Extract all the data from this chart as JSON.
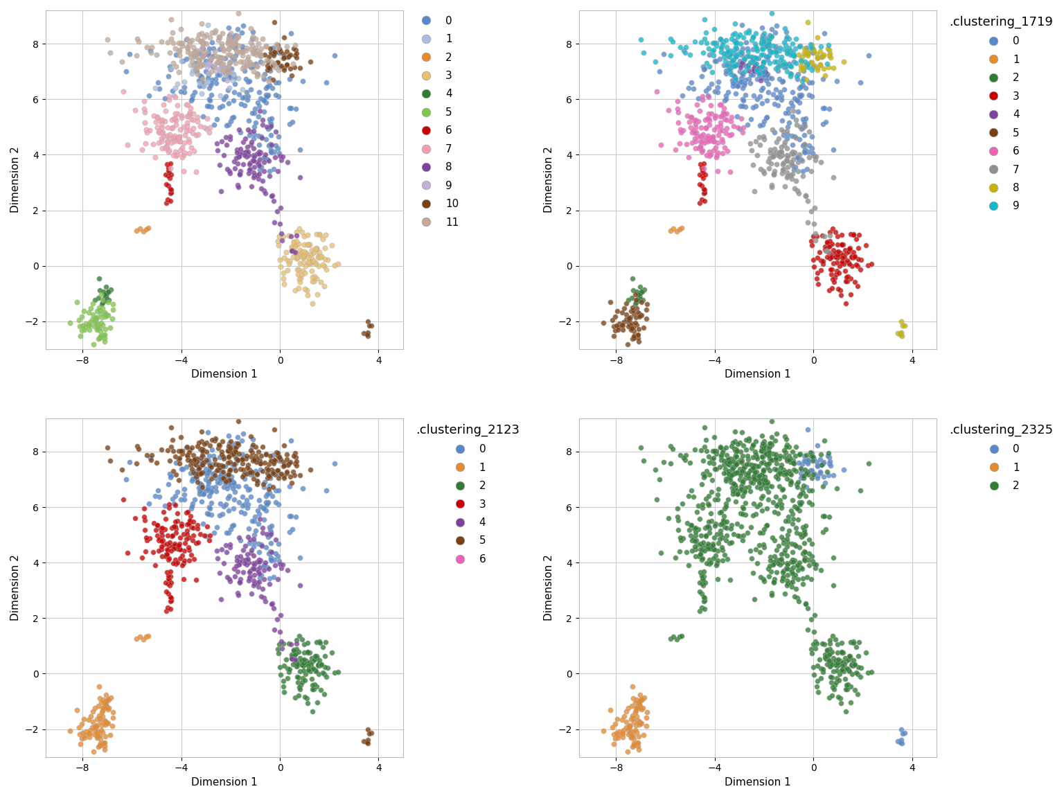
{
  "xlabel": "Dimension 1",
  "ylabel": "Dimension 2",
  "xlim": [
    -9.5,
    5.0
  ],
  "ylim": [
    -3.0,
    9.2
  ],
  "xticks": [
    -8,
    -4,
    0,
    4
  ],
  "yticks": [
    -2,
    0,
    2,
    4,
    6,
    8
  ],
  "point_size": 28,
  "alpha": 0.78,
  "edge_color": "#AAAAAA",
  "edge_width": 0.4,
  "bg_color": "#FFFFFF",
  "grid_color": "#CCCCCC",
  "panels": [
    {
      "legend_title": null,
      "cluster_colors": [
        "#5588CC",
        "#AABEDD",
        "#E8892A",
        "#E8C070",
        "#2E7D32",
        "#7DC844",
        "#CC0000",
        "#F4A0B0",
        "#8040A0",
        "#C0B0DC",
        "#7B3F10",
        "#C4A898"
      ],
      "cluster_labels": [
        "0",
        "1",
        "2",
        "3",
        "4",
        "5",
        "6",
        "7",
        "8",
        "9",
        "10",
        "11"
      ]
    },
    {
      "legend_title": ".clustering_1719",
      "cluster_colors": [
        "#5588CC",
        "#E8892A",
        "#2E7D32",
        "#CC0000",
        "#8040A0",
        "#7B3F10",
        "#F060B8",
        "#909090",
        "#C8B400",
        "#10B8CC"
      ],
      "cluster_labels": [
        "0",
        "1",
        "2",
        "3",
        "4",
        "5",
        "6",
        "7",
        "8",
        "9"
      ]
    },
    {
      "legend_title": ".clustering_2123",
      "cluster_colors": [
        "#5588CC",
        "#E8892A",
        "#2E7D32",
        "#CC0000",
        "#8040A0",
        "#7B3F10",
        "#F060B8"
      ],
      "cluster_labels": [
        "0",
        "1",
        "2",
        "3",
        "4",
        "5",
        "6"
      ]
    },
    {
      "legend_title": ".clustering_2325",
      "cluster_colors": [
        "#5588CC",
        "#E8892A",
        "#2E7D32"
      ],
      "cluster_labels": [
        "0",
        "1",
        "2"
      ]
    }
  ]
}
